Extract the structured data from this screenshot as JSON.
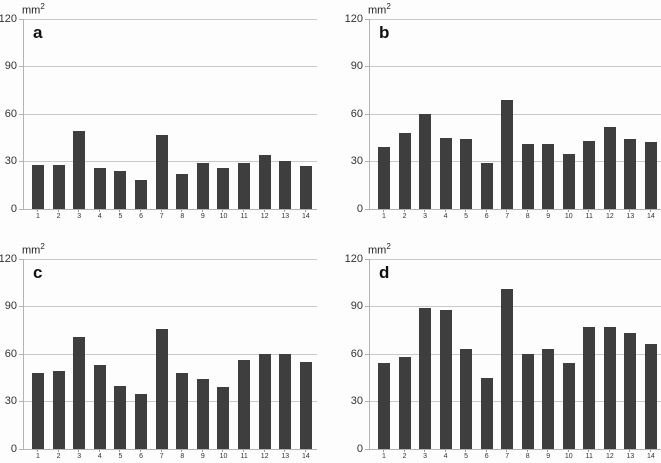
{
  "figure": {
    "unit_label": {
      "base": "mm",
      "exponent": "2"
    },
    "colors": {
      "bar": "#3e3e3e",
      "gridline": "#c9c9c9",
      "axis": "#b3b3b3",
      "tick_text": "#333333",
      "background": "#fdfdfd"
    }
  },
  "chart_data": [
    {
      "type": "bar",
      "title": "a",
      "ylabel": "mm²",
      "xlabel": "",
      "ylim": [
        0,
        120
      ],
      "yticks": [
        0,
        30,
        60,
        90,
        120
      ],
      "grid": true,
      "legend": false,
      "categories": [
        "1",
        "2",
        "3",
        "4",
        "5",
        "6",
        "7",
        "8",
        "9",
        "10",
        "11",
        "12",
        "13",
        "14"
      ],
      "values": [
        28,
        28,
        49,
        26,
        24,
        18,
        47,
        22,
        29,
        26,
        29,
        34,
        30,
        27
      ]
    },
    {
      "type": "bar",
      "title": "b",
      "ylabel": "mm²",
      "xlabel": "",
      "ylim": [
        0,
        120
      ],
      "yticks": [
        0,
        30,
        60,
        90,
        120
      ],
      "grid": true,
      "legend": false,
      "categories": [
        "1",
        "2",
        "3",
        "4",
        "5",
        "6",
        "7",
        "8",
        "9",
        "10",
        "11",
        "12",
        "13",
        "14"
      ],
      "values": [
        39,
        48,
        60,
        45,
        44,
        29,
        69,
        41,
        41,
        35,
        43,
        52,
        44,
        42
      ]
    },
    {
      "type": "bar",
      "title": "c",
      "ylabel": "mm²",
      "xlabel": "",
      "ylim": [
        0,
        120
      ],
      "yticks": [
        0,
        30,
        60,
        90,
        120
      ],
      "grid": true,
      "legend": false,
      "categories": [
        "1",
        "2",
        "3",
        "4",
        "5",
        "6",
        "7",
        "8",
        "9",
        "10",
        "11",
        "12",
        "13",
        "14"
      ],
      "values": [
        48,
        49,
        71,
        53,
        40,
        35,
        76,
        48,
        44,
        39,
        56,
        60,
        60,
        55
      ]
    },
    {
      "type": "bar",
      "title": "d",
      "ylabel": "mm²",
      "xlabel": "",
      "ylim": [
        0,
        120
      ],
      "yticks": [
        0,
        30,
        60,
        90,
        120
      ],
      "grid": true,
      "legend": false,
      "categories": [
        "1",
        "2",
        "3",
        "4",
        "5",
        "6",
        "7",
        "8",
        "9",
        "10",
        "11",
        "12",
        "13",
        "14"
      ],
      "values": [
        54,
        58,
        89,
        88,
        63,
        45,
        101,
        60,
        63,
        54,
        77,
        77,
        73,
        66
      ]
    }
  ]
}
